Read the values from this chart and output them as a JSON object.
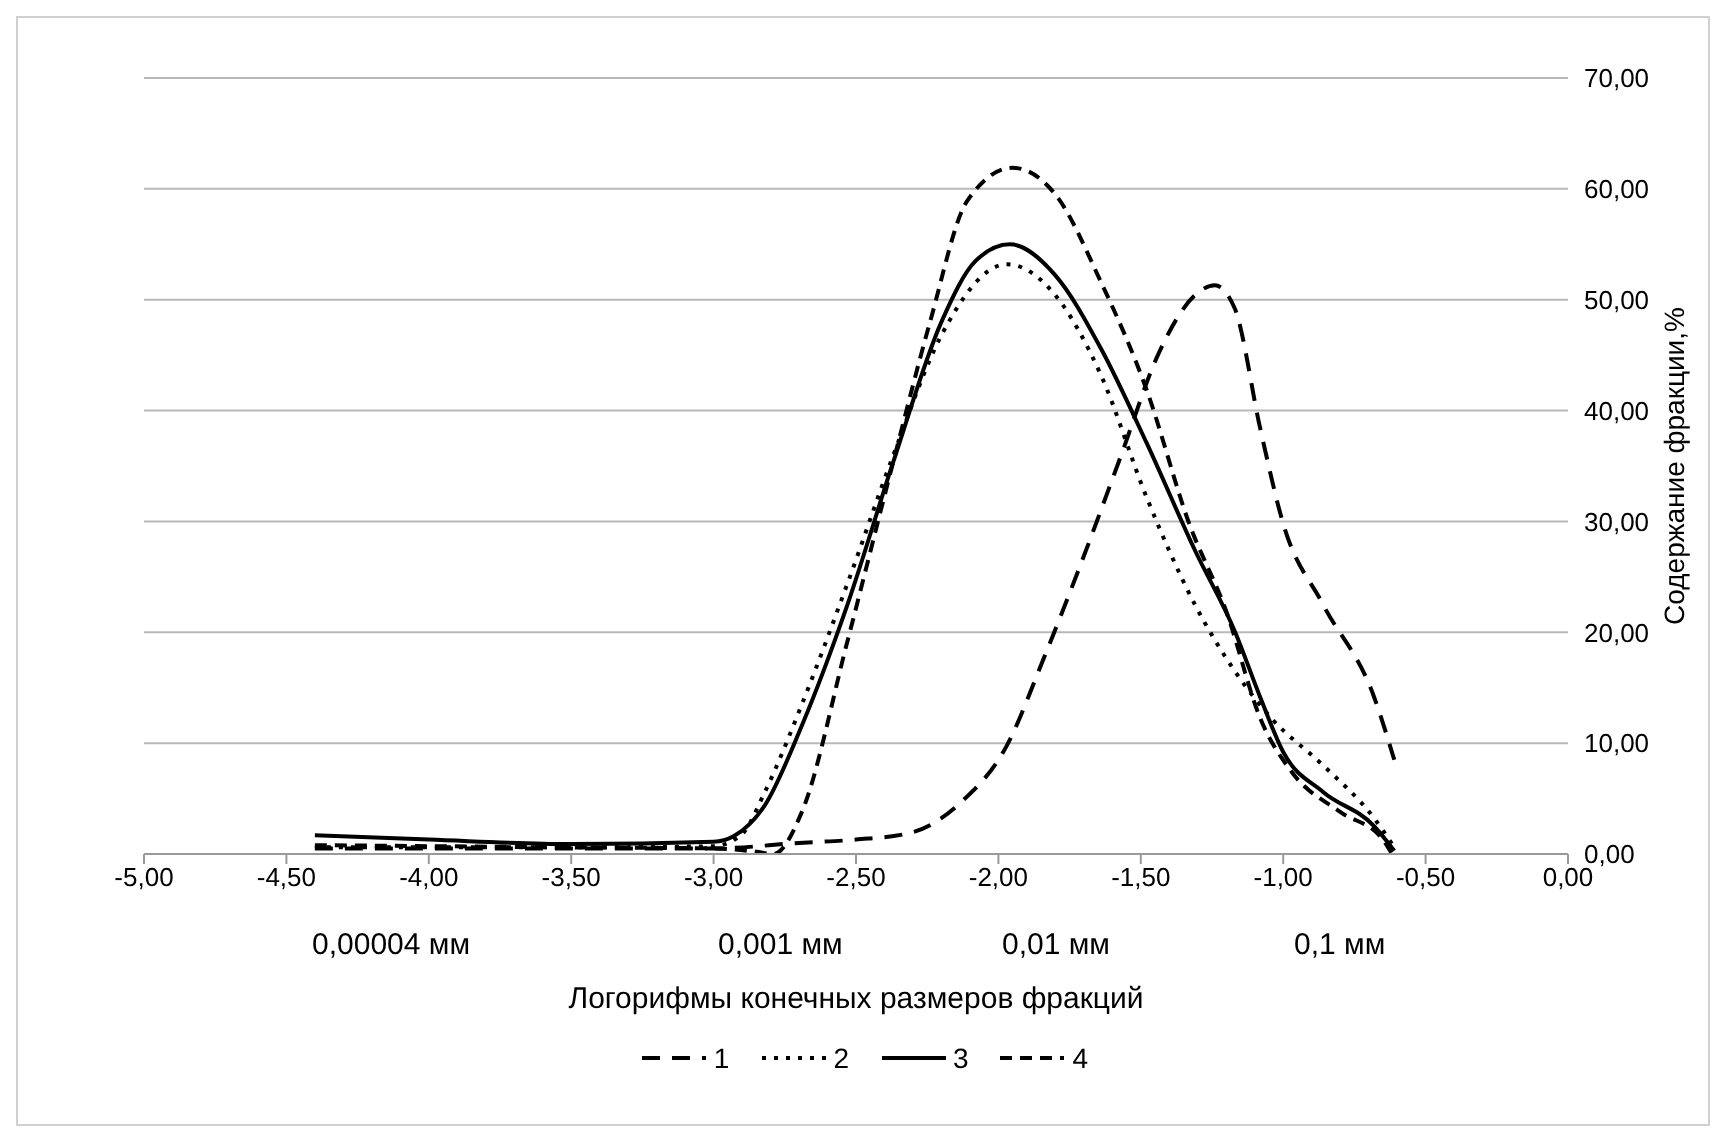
{
  "chart_data": {
    "type": "line",
    "xlabel": "Логорифмы конечных размеров фракций",
    "ylabel": "Содержание фракции,%",
    "xlim": [
      -5,
      0
    ],
    "xticks": [
      {
        "value": -5,
        "label": "-5,00"
      },
      {
        "value": -4.5,
        "label": "-4,50"
      },
      {
        "value": -4,
        "label": "-4,00"
      },
      {
        "value": -3.5,
        "label": "-3,50"
      },
      {
        "value": -3,
        "label": "-3,00"
      },
      {
        "value": -2.5,
        "label": "-2,50"
      },
      {
        "value": -2,
        "label": "-2,00"
      },
      {
        "value": -1.5,
        "label": "-1,50"
      },
      {
        "value": -1,
        "label": "-1,00"
      },
      {
        "value": -0.5,
        "label": "-0,50"
      },
      {
        "value": 0,
        "label": "0,00"
      }
    ],
    "ylim": [
      0,
      70
    ],
    "yticks": [
      {
        "value": 0,
        "label": "0,00"
      },
      {
        "value": 10,
        "label": "10,00"
      },
      {
        "value": 20,
        "label": "20,00"
      },
      {
        "value": 30,
        "label": "30,00"
      },
      {
        "value": 40,
        "label": "40,00"
      },
      {
        "value": 50,
        "label": "50,00"
      },
      {
        "value": 60,
        "label": "60,00"
      },
      {
        "value": 70,
        "label": "70,00"
      }
    ],
    "grid": "y",
    "legend": "bottom",
    "marker": "none",
    "annotations": [
      "0,00004 мм",
      "0,001 мм",
      "0,01 мм",
      "0,1 мм"
    ],
    "series": [
      {
        "name": "1",
        "color": "#000000",
        "line_style": "dashed",
        "x": [
          -4.4,
          -3.5,
          -3.0,
          -2.7,
          -2.5,
          -2.31,
          -2.13,
          -1.97,
          -1.84,
          -1.71,
          -1.57,
          -1.44,
          -1.31,
          -1.24,
          -1.17,
          -1.08,
          -1.0,
          -0.86,
          -0.68,
          -0.61
        ],
        "values": [
          0.5,
          0.5,
          0.5,
          1.0,
          1.3,
          1.9,
          4.7,
          9.8,
          17.7,
          26.2,
          35.9,
          45,
          50.4,
          51.3,
          49.2,
          38.3,
          29.8,
          22.5,
          14.1,
          8.5
        ]
      },
      {
        "name": "2",
        "color": "#000000",
        "line_style": "dotted",
        "x": [
          -4.4,
          -4.0,
          -3.5,
          -3.0,
          -2.9,
          -2.82,
          -2.69,
          -2.53,
          -2.37,
          -2.2,
          -1.97,
          -1.8,
          -1.64,
          -1.48,
          -1.31,
          -1.17,
          -1.04,
          -0.86,
          -0.68,
          -0.61
        ],
        "values": [
          0.6,
          0.6,
          0.6,
          0.7,
          1.8,
          5.6,
          13.5,
          24.4,
          35.9,
          46.8,
          53.2,
          50.4,
          43.2,
          32.2,
          22.5,
          16.5,
          12.2,
          8.0,
          3.2,
          0.6
        ]
      },
      {
        "name": "3",
        "color": "#000000",
        "line_style": "solid",
        "x": [
          -4.4,
          -4.0,
          -3.5,
          -3.0,
          -2.93,
          -2.82,
          -2.69,
          -2.53,
          -2.37,
          -2.2,
          -2.08,
          -1.96,
          -1.8,
          -1.64,
          -1.48,
          -1.31,
          -1.17,
          -1.08,
          -1.0,
          -0.86,
          -0.68,
          -0.61
        ],
        "values": [
          1.7,
          1.3,
          0.9,
          1.1,
          1.6,
          4.4,
          11.6,
          22.5,
          35.3,
          48,
          53.5,
          55.0,
          52.2,
          45.6,
          37.1,
          27.4,
          20.1,
          14.1,
          9.2,
          5.6,
          2.5,
          0.3
        ]
      },
      {
        "name": "4",
        "color": "#000000",
        "line_style": "dashed",
        "x": [
          -4.4,
          -3.5,
          -3.0,
          -2.85,
          -2.79,
          -2.69,
          -2.53,
          -2.37,
          -2.24,
          -2.11,
          -1.95,
          -1.8,
          -1.64,
          -1.48,
          -1.33,
          -1.2,
          -1.08,
          -0.97,
          -0.8,
          -0.65,
          -0.62
        ],
        "values": [
          0.8,
          0.6,
          0.5,
          0.2,
          0,
          3.8,
          19.2,
          35.3,
          48,
          58.9,
          61.9,
          59.5,
          51.6,
          41.9,
          29.8,
          21.9,
          12.2,
          7.4,
          3.8,
          1.3,
          0.1
        ]
      }
    ]
  }
}
